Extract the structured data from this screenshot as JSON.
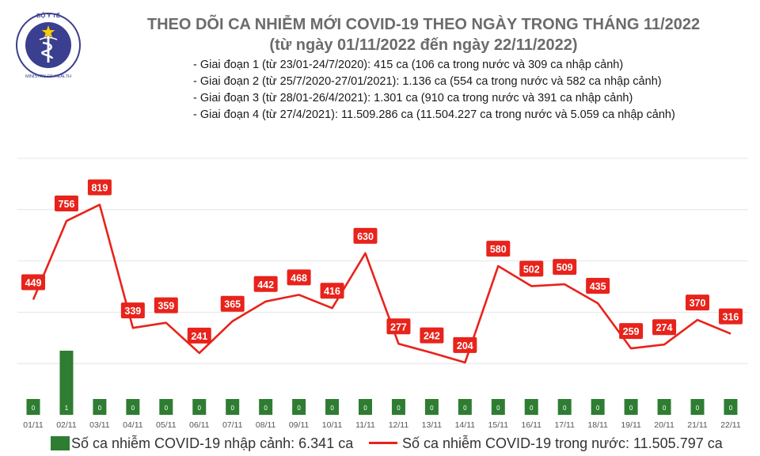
{
  "header": {
    "title": "THEO DÕI CA NHIỄM MỚI COVID-19 THEO NGÀY TRONG THÁNG 11/2022",
    "subtitle": "(từ ngày 01/11/2022 đến ngày 22/11/2022)",
    "phases": [
      "- Giai đoạn 1 (từ 23/01-24/7/2020): 415 ca (106 ca trong nước và 309 ca nhập cảnh)",
      "- Giai đoạn 2 (từ 25/7/2020-27/01/2021): 1.136 ca (554 ca trong nước và 582 ca nhập cảnh)",
      "- Giai đoạn 3 (từ 28/01-26/4/2021): 1.301 ca (910 ca trong nước và 391 ca nhập cảnh)",
      "- Giai đoạn 4 (từ 27/4/2021): 11.509.286 ca (11.504.227 ca trong nước và 5.059 ca nhập cảnh)"
    ]
  },
  "logo": {
    "top_text": "BỘ Y TẾ",
    "bottom_text": "MINISTRY OF HEALTH",
    "color": "#3a3f8f"
  },
  "legend": {
    "bar_label": "Số ca nhiễm COVID-19 nhập cảnh: 6.341 ca",
    "line_label": "Số ca nhiễm COVID-19 trong nước: 11.505.797 ca"
  },
  "colors": {
    "line": "#e8231b",
    "bar": "#2e7d32",
    "grid": "#e4e4e4",
    "axis_text": "#555555"
  },
  "chart_data": {
    "type": "line",
    "categories": [
      "01/11",
      "02/11",
      "03/11",
      "04/11",
      "05/11",
      "06/11",
      "07/11",
      "08/11",
      "09/11",
      "10/11",
      "11/11",
      "12/11",
      "13/11",
      "14/11",
      "15/11",
      "16/11",
      "17/11",
      "18/11",
      "19/11",
      "20/11",
      "21/11",
      "22/11"
    ],
    "series": [
      {
        "name": "Số ca nhiễm COVID-19 trong nước: 11.505.797 ca",
        "type": "line",
        "axis": "left",
        "values": [
          449,
          756,
          819,
          339,
          359,
          241,
          365,
          442,
          468,
          416,
          630,
          277,
          242,
          204,
          580,
          502,
          509,
          435,
          259,
          274,
          370,
          316
        ]
      },
      {
        "name": "Số ca nhiễm COVID-19 nhập cảnh: 6.341 ca",
        "type": "bar",
        "axis": "right",
        "values": [
          0,
          1,
          0,
          0,
          0,
          0,
          0,
          0,
          0,
          0,
          0,
          0,
          0,
          0,
          0,
          0,
          0,
          0,
          0,
          0,
          0,
          0
        ]
      }
    ],
    "ylim_left": [
      0,
      1000
    ],
    "ylim_right": [
      0,
      4
    ],
    "grid": true,
    "legend_position": "bottom"
  }
}
